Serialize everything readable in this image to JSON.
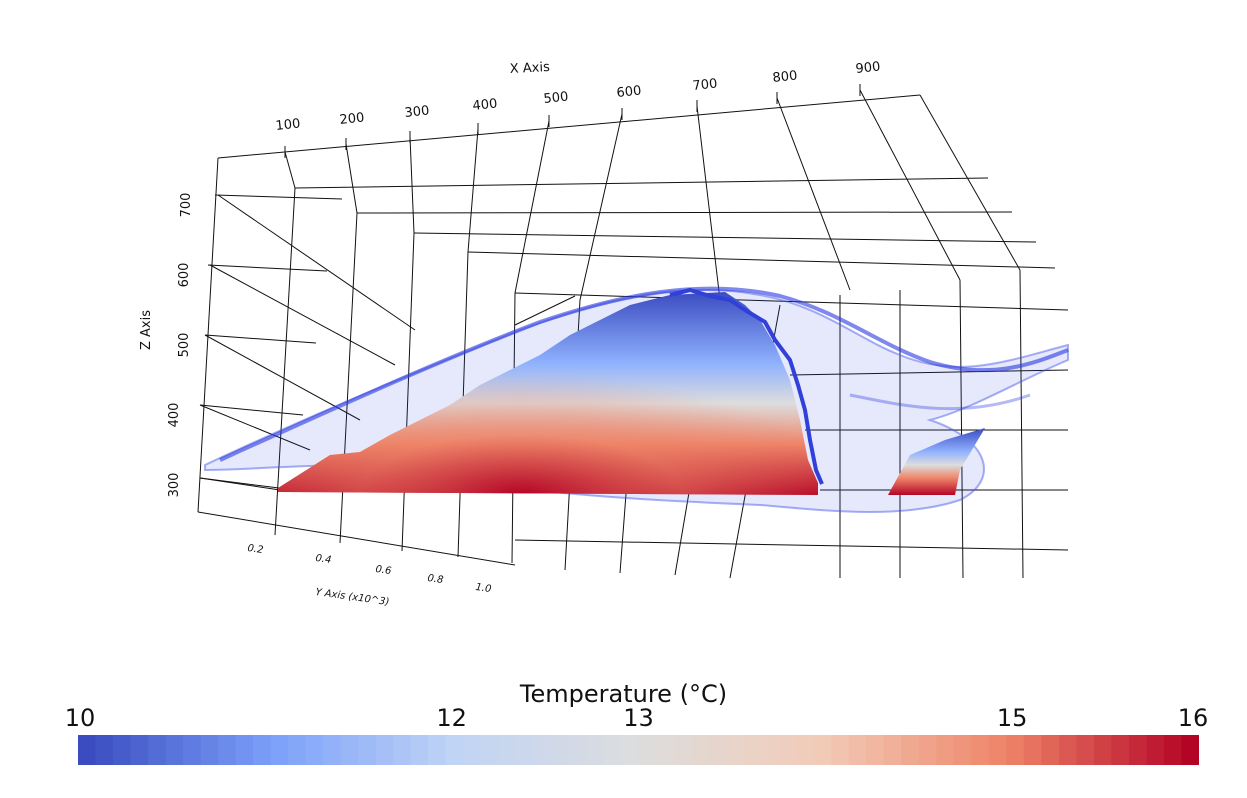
{
  "chart_data": {
    "type": "surface3d",
    "axes": {
      "x": {
        "label": "X Axis",
        "ticks": [
          "100",
          "200",
          "300",
          "400",
          "500",
          "600",
          "700",
          "800",
          "900"
        ]
      },
      "y": {
        "label": "Y Axis (x10^3)",
        "ticks": [
          "0.2",
          "0.4",
          "0.6",
          "0.8",
          "1.0"
        ]
      },
      "z": {
        "label": "Z Axis",
        "ticks": [
          "300",
          "400",
          "500",
          "600",
          "700"
        ]
      }
    },
    "grid": true,
    "surfaces": [
      {
        "name": "opaque",
        "color_scale": "Temperature (°C)"
      },
      {
        "name": "translucent",
        "color": "#3f4fe8"
      }
    ],
    "colorbar": {
      "title": "Temperature (°C)",
      "range": [
        10,
        16
      ],
      "tick_labels": [
        "10",
        "12",
        "13",
        "15",
        "16"
      ],
      "tick_values": [
        10,
        12,
        13,
        15,
        16
      ],
      "stops": [
        "#3b4cc0",
        "#7b9ff9",
        "#c0d4f5",
        "#dddddd",
        "#f2cbb7",
        "#ee8468",
        "#b40426"
      ]
    }
  }
}
